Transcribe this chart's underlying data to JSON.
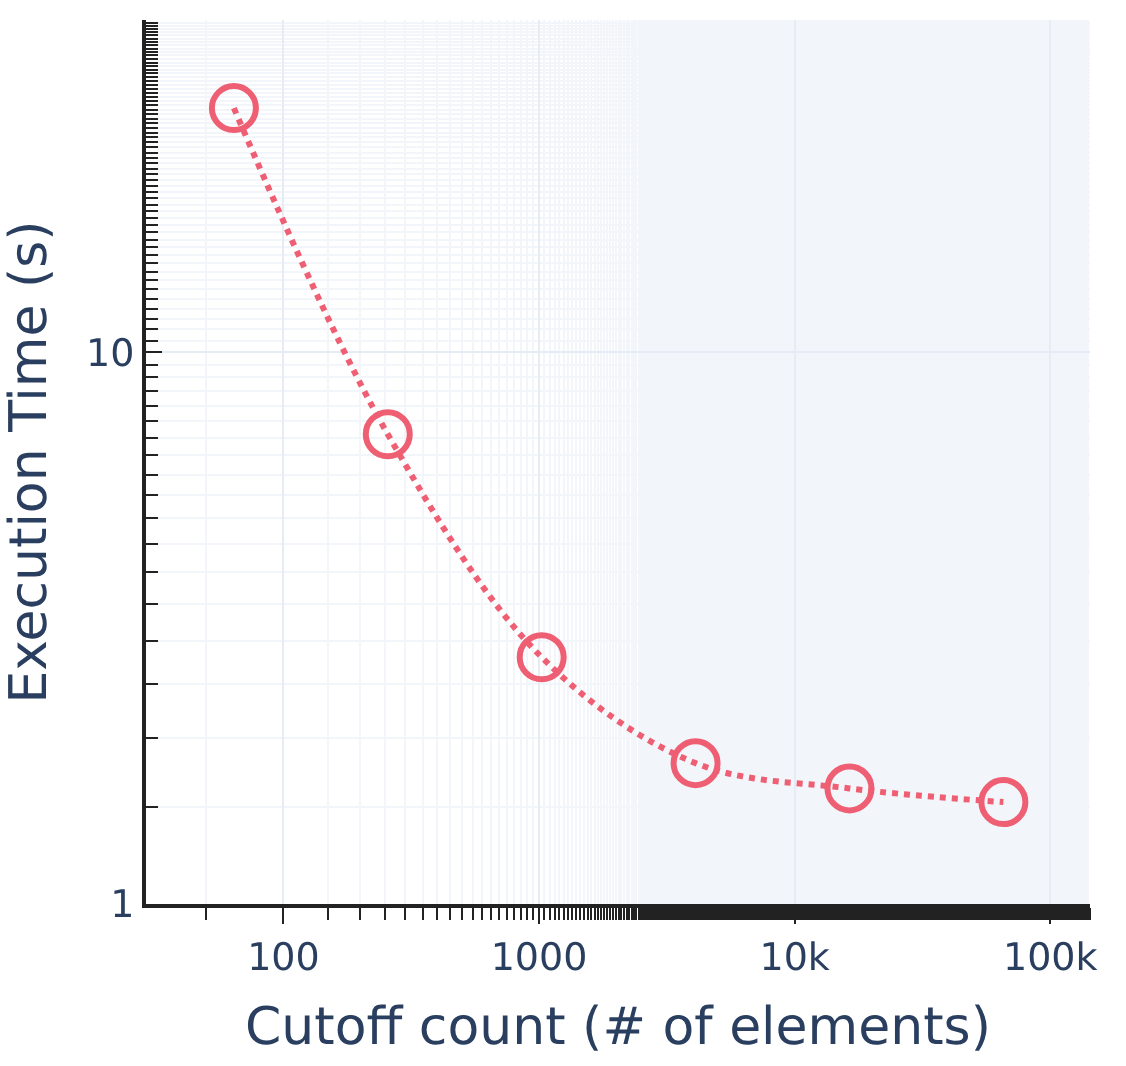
{
  "chart_data": {
    "type": "line",
    "xlabel": "Cutoff count (# of elements)",
    "ylabel": "Execution Time (s)",
    "x": [
      64,
      256,
      1024,
      4096,
      16384,
      65536
    ],
    "series": [
      {
        "color": "#ef5f73",
        "values": [
          27.7,
          7.1,
          2.8,
          1.8,
          1.62,
          1.53
        ]
      }
    ],
    "log": "xy",
    "xlim": [
      29,
      143000
    ],
    "ylim": [
      1,
      40
    ],
    "xticks": [
      100,
      1000,
      {
        "value": 10000,
        "label": "10k"
      },
      {
        "value": 100000,
        "label": "100k"
      }
    ],
    "yticks": [
      1,
      10
    ],
    "grid": true,
    "marker": "circle",
    "line_style": "dotted",
    "legend": false
  }
}
